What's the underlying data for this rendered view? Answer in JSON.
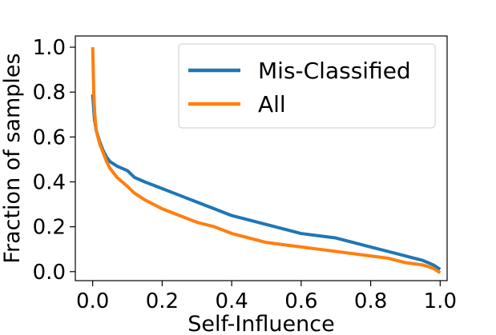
{
  "chart_data": {
    "type": "line",
    "title": "",
    "xlabel": "Self-Influence",
    "ylabel": "Fraction of samples",
    "xlim": [
      -0.05,
      1.02
    ],
    "ylim": [
      -0.04,
      1.05
    ],
    "x_ticks": [
      0.0,
      0.2,
      0.4,
      0.6,
      0.8,
      1.0
    ],
    "x_tick_labels": [
      "0.0",
      "0.2",
      "0.4",
      "0.6",
      "0.8",
      "1.0"
    ],
    "y_ticks": [
      0.0,
      0.2,
      0.4,
      0.6,
      0.8,
      1.0
    ],
    "y_tick_labels": [
      "0.0",
      "0.2",
      "0.4",
      "0.6",
      "0.8",
      "1.0"
    ],
    "grid": false,
    "legend": {
      "placement": "top-right"
    },
    "series": [
      {
        "name": "Mis-Classified",
        "color": "#1f77b4",
        "x": [
          0.0,
          0.005,
          0.01,
          0.02,
          0.03,
          0.04,
          0.05,
          0.07,
          0.1,
          0.12,
          0.15,
          0.2,
          0.25,
          0.3,
          0.35,
          0.4,
          0.45,
          0.5,
          0.55,
          0.6,
          0.65,
          0.7,
          0.75,
          0.8,
          0.85,
          0.9,
          0.95,
          0.98,
          1.0
        ],
        "y": [
          0.79,
          0.68,
          0.63,
          0.58,
          0.54,
          0.51,
          0.49,
          0.47,
          0.45,
          0.42,
          0.4,
          0.37,
          0.34,
          0.31,
          0.28,
          0.25,
          0.23,
          0.21,
          0.19,
          0.17,
          0.16,
          0.15,
          0.13,
          0.11,
          0.09,
          0.07,
          0.05,
          0.03,
          0.01
        ]
      },
      {
        "name": "All",
        "color": "#ff7f0e",
        "x": [
          0.0,
          0.003,
          0.006,
          0.01,
          0.02,
          0.03,
          0.04,
          0.05,
          0.07,
          0.1,
          0.12,
          0.15,
          0.2,
          0.25,
          0.3,
          0.35,
          0.4,
          0.45,
          0.5,
          0.55,
          0.6,
          0.65,
          0.7,
          0.75,
          0.8,
          0.85,
          0.9,
          0.95,
          0.98,
          1.0
        ],
        "y": [
          1.0,
          0.8,
          0.7,
          0.63,
          0.57,
          0.53,
          0.49,
          0.46,
          0.42,
          0.38,
          0.35,
          0.32,
          0.28,
          0.25,
          0.22,
          0.2,
          0.17,
          0.15,
          0.13,
          0.12,
          0.11,
          0.1,
          0.09,
          0.08,
          0.07,
          0.06,
          0.04,
          0.03,
          0.015,
          -0.005
        ]
      }
    ]
  }
}
